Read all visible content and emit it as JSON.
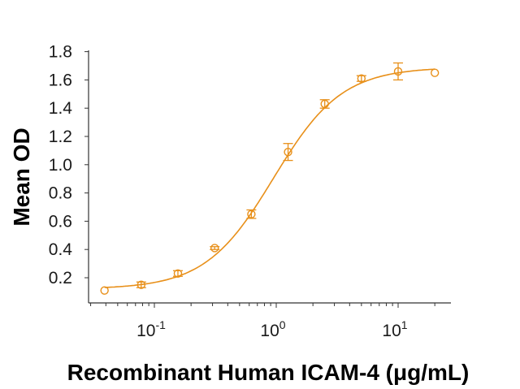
{
  "chart_data": {
    "type": "line",
    "title": "",
    "xlabel": "Recombinant Human ICAM-4 (μg/mL)",
    "ylabel": "Mean OD",
    "xscale": "log",
    "xlim": [
      0.03,
      30
    ],
    "ylim": [
      0.1,
      1.8
    ],
    "grid": false,
    "legend": null,
    "color": "#E8901A",
    "y_ticks": [
      "0.2",
      "0.4",
      "0.6",
      "0.8",
      "1.0",
      "1.2",
      "1.4",
      "1.6",
      "1.8"
    ],
    "x_ticks": [
      {
        "base": "10",
        "exp": "-1",
        "value": 0.1
      },
      {
        "base": "10",
        "exp": "0",
        "value": 1
      },
      {
        "base": "10",
        "exp": "1",
        "value": 10
      }
    ],
    "series": [
      {
        "name": "Recombinant Human ICAM-4",
        "marker": "open-circle",
        "x": [
          0.039,
          0.078,
          0.156,
          0.3125,
          0.625,
          1.25,
          2.5,
          5,
          10,
          20
        ],
        "values": [
          0.11,
          0.15,
          0.23,
          0.41,
          0.65,
          1.09,
          1.43,
          1.61,
          1.66,
          1.65
        ],
        "error": [
          0.0,
          0.02,
          0.02,
          0.01,
          0.03,
          0.06,
          0.03,
          0.02,
          0.06,
          0.0
        ]
      }
    ],
    "fit": {
      "type": "4PL",
      "bottom": 0.12,
      "top": 1.69,
      "ec50": 0.95,
      "hill": 1.55
    }
  }
}
